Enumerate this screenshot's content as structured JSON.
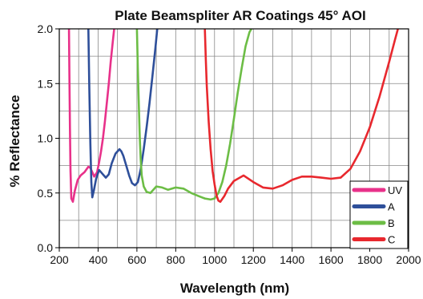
{
  "chart_data": {
    "type": "line",
    "title": "Plate Beamspliter AR Coatings 45° AOI",
    "xlabel": "Wavelength (nm)",
    "ylabel": "% Reflectance",
    "xlim": [
      200,
      2000
    ],
    "ylim": [
      0.0,
      2.0
    ],
    "xticks": [
      200,
      400,
      600,
      800,
      1000,
      1200,
      1400,
      1600,
      1800,
      2000
    ],
    "yticks": [
      0.0,
      0.5,
      1.0,
      1.5,
      2.0
    ],
    "ytick_labels": [
      "0.0",
      "0.5",
      "1.0",
      "1.5",
      "2.0"
    ],
    "grid": true,
    "legend_position": "bottom-right",
    "series": [
      {
        "name": "UV",
        "color": "#e8318a",
        "x": [
          250,
          252,
          255,
          258,
          262,
          270,
          280,
          295,
          310,
          330,
          350,
          360,
          370,
          380,
          395,
          405,
          415,
          425,
          435,
          445,
          455,
          465,
          475,
          483
        ],
        "y": [
          2.0,
          1.6,
          1.1,
          0.7,
          0.45,
          0.42,
          0.52,
          0.62,
          0.66,
          0.69,
          0.74,
          0.73,
          0.69,
          0.65,
          0.69,
          0.78,
          0.88,
          1.0,
          1.15,
          1.32,
          1.5,
          1.7,
          1.87,
          2.0
        ]
      },
      {
        "name": "A",
        "color": "#2e4f9a",
        "x": [
          350,
          355,
          360,
          365,
          370,
          378,
          390,
          405,
          420,
          440,
          455,
          470,
          490,
          510,
          520,
          530,
          545,
          560,
          575,
          590,
          605,
          620,
          635,
          650,
          665,
          680,
          695,
          705
        ],
        "y": [
          2.0,
          1.45,
          0.95,
          0.6,
          0.46,
          0.52,
          0.63,
          0.71,
          0.68,
          0.64,
          0.67,
          0.77,
          0.86,
          0.9,
          0.88,
          0.84,
          0.75,
          0.66,
          0.59,
          0.57,
          0.6,
          0.72,
          0.9,
          1.1,
          1.32,
          1.57,
          1.82,
          2.0
        ]
      },
      {
        "name": "B",
        "color": "#6cbd45",
        "x": [
          600,
          605,
          610,
          615,
          620,
          625,
          635,
          650,
          670,
          700,
          730,
          760,
          800,
          840,
          880,
          920,
          950,
          980,
          1000,
          1020,
          1040,
          1060,
          1080,
          1100,
          1120,
          1140,
          1160,
          1180,
          1190
        ],
        "y": [
          2.0,
          1.62,
          1.3,
          1.0,
          0.8,
          0.66,
          0.56,
          0.51,
          0.5,
          0.56,
          0.55,
          0.53,
          0.55,
          0.54,
          0.5,
          0.47,
          0.45,
          0.44,
          0.45,
          0.5,
          0.6,
          0.75,
          0.95,
          1.18,
          1.42,
          1.64,
          1.84,
          1.97,
          2.0
        ]
      },
      {
        "name": "C",
        "color": "#e8282e",
        "x": [
          950,
          955,
          960,
          970,
          980,
          990,
          1000,
          1010,
          1020,
          1030,
          1050,
          1070,
          1100,
          1150,
          1200,
          1250,
          1300,
          1350,
          1400,
          1450,
          1500,
          1550,
          1600,
          1650,
          1700,
          1750,
          1800,
          1850,
          1900,
          1930,
          1945
        ],
        "y": [
          2.0,
          1.72,
          1.48,
          1.15,
          0.9,
          0.7,
          0.58,
          0.48,
          0.43,
          0.42,
          0.47,
          0.54,
          0.61,
          0.66,
          0.6,
          0.55,
          0.54,
          0.57,
          0.62,
          0.65,
          0.65,
          0.64,
          0.63,
          0.64,
          0.72,
          0.88,
          1.1,
          1.38,
          1.7,
          1.9,
          2.0
        ]
      }
    ]
  }
}
